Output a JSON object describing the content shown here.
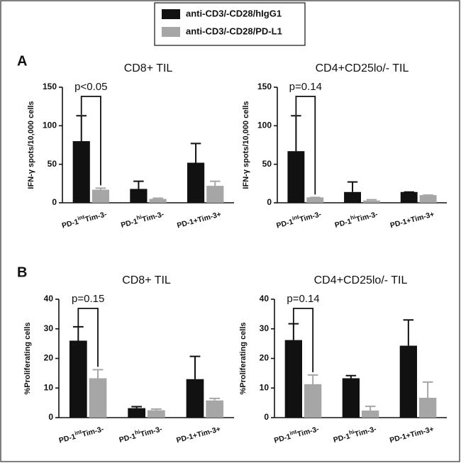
{
  "legend": [
    {
      "label": "anti-CD3/-CD28/hIgG1",
      "color": "#111111"
    },
    {
      "label": "anti-CD3/-CD28/PD-L1",
      "color": "#a6a6a6"
    }
  ],
  "panel_labels": [
    "A",
    "B"
  ],
  "chart_data": [
    {
      "type": "bar",
      "title": "CD8+ TIL",
      "ylabel": "IFN-γ spots/10,000 cells",
      "annotation": "p<0.05",
      "categories": [
        [
          "PD-1",
          "int",
          "Tim-3-"
        ],
        [
          "PD-1",
          "hi",
          "Tim-3-"
        ],
        [
          "PD-1+Tim-3+"
        ]
      ],
      "ylim": [
        0,
        150
      ],
      "yticks": [
        0,
        50,
        100,
        150
      ],
      "series": [
        {
          "color": "#111111",
          "values": [
            80,
            18,
            52
          ],
          "errors": [
            33,
            10,
            25
          ]
        },
        {
          "color": "#a6a6a6",
          "values": [
            17,
            5,
            22
          ],
          "errors": [
            2,
            1,
            6
          ]
        }
      ]
    },
    {
      "type": "bar",
      "title": "CD4+CD25lo/- TIL",
      "ylabel": "IFN-γ spots/10,000 cells",
      "annotation": "p=0.14",
      "categories": [
        [
          "PD-1",
          "int",
          "Tim-3-"
        ],
        [
          "PD-1",
          "hi",
          "Tim-3-"
        ],
        [
          "PD-1+Tim-3+"
        ]
      ],
      "ylim": [
        0,
        150
      ],
      "yticks": [
        0,
        50,
        100,
        150
      ],
      "series": [
        {
          "color": "#111111",
          "values": [
            67,
            14,
            14
          ],
          "errors": [
            46,
            13,
            0
          ]
        },
        {
          "color": "#a6a6a6",
          "values": [
            7,
            3,
            10
          ],
          "errors": [
            0,
            1,
            0
          ]
        }
      ]
    },
    {
      "type": "bar",
      "title": "CD8+ TIL",
      "ylabel": "%Proliferating cells",
      "annotation": "p=0.15",
      "categories": [
        [
          "PD-1",
          "int",
          "Tim-3-"
        ],
        [
          "PD-1",
          "hi",
          "Tim-3-"
        ],
        [
          "PD-1+Tim-3+"
        ]
      ],
      "ylim": [
        0,
        40
      ],
      "yticks": [
        0,
        10,
        20,
        30,
        40
      ],
      "series": [
        {
          "color": "#111111",
          "values": [
            26,
            3.2,
            13
          ],
          "errors": [
            4.7,
            0.5,
            7.7
          ]
        },
        {
          "color": "#a6a6a6",
          "values": [
            13.3,
            2.5,
            5.8
          ],
          "errors": [
            2.9,
            0.4,
            0.7
          ]
        }
      ]
    },
    {
      "type": "bar",
      "title": "CD4+CD25lo/- TIL",
      "ylabel": "%Proliferating cells",
      "annotation": "p=0.14",
      "categories": [
        [
          "PD-1",
          "int",
          "Tim-3-"
        ],
        [
          "PD-1",
          "hi",
          "Tim-3-"
        ],
        [
          "PD-1+Tim-3+"
        ]
      ],
      "ylim": [
        0,
        40
      ],
      "yticks": [
        0,
        10,
        20,
        30,
        40
      ],
      "series": [
        {
          "color": "#111111",
          "values": [
            26.2,
            13.3,
            24.3
          ],
          "errors": [
            5.5,
            0.9,
            8.7
          ]
        },
        {
          "color": "#a6a6a6",
          "values": [
            11.3,
            2.4,
            6.7
          ],
          "errors": [
            3.1,
            1.4,
            5.3
          ]
        }
      ]
    }
  ]
}
